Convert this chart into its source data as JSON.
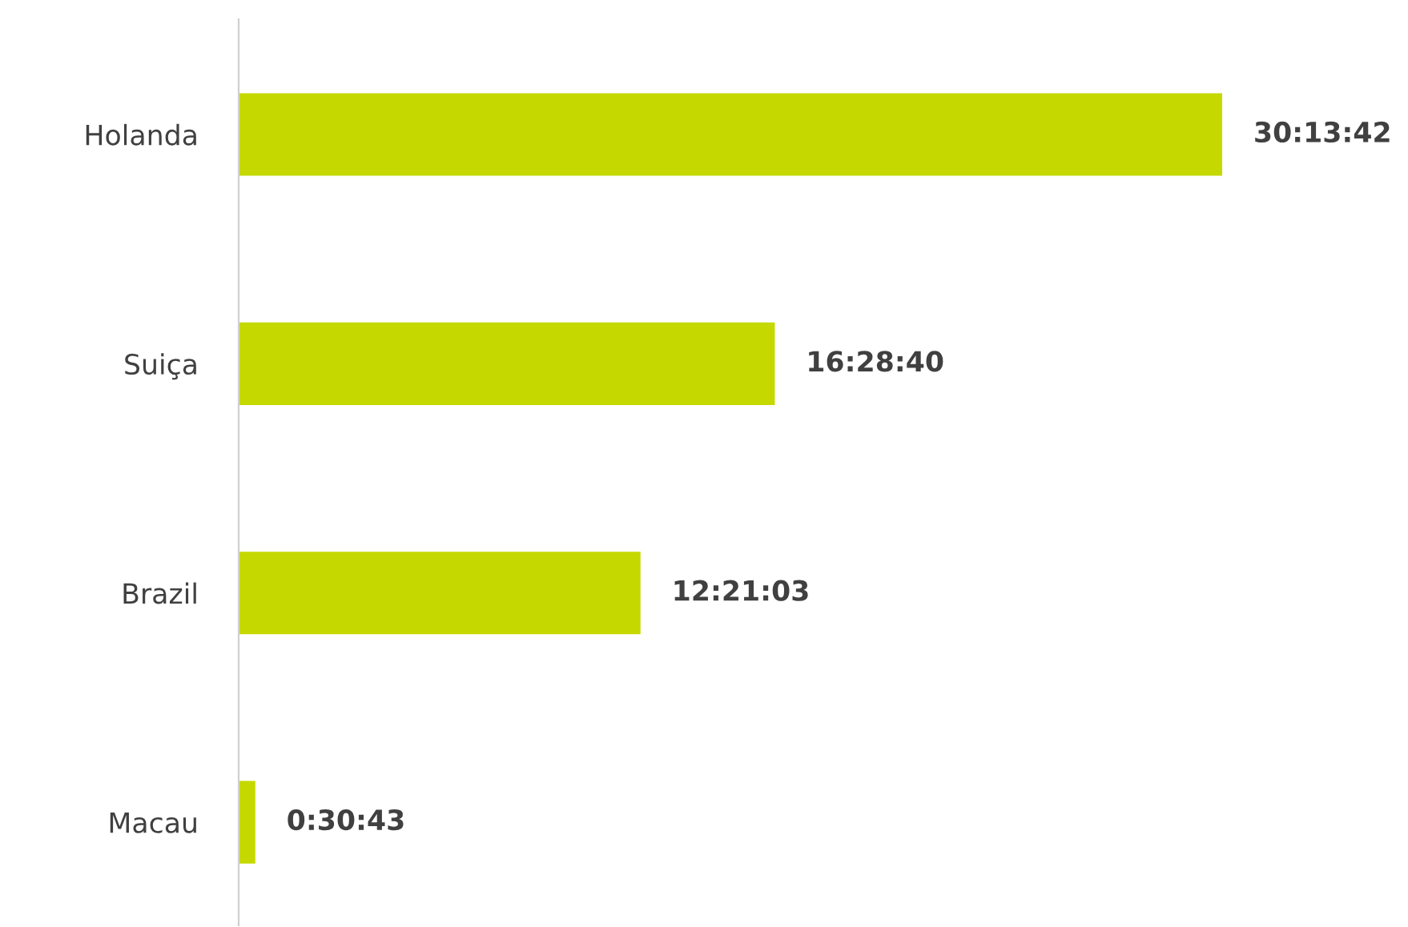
{
  "chart_data": {
    "type": "bar",
    "orientation": "horizontal",
    "categories": [
      "Holanda",
      "Suiça",
      "Brazil",
      "Macau"
    ],
    "values": [
      30.2283,
      16.4778,
      12.3508,
      0.5119
    ],
    "value_labels": [
      "30:13:42",
      "16:28:40",
      "12:21:03",
      "0:30:43"
    ],
    "color": "#c5d900",
    "grid": false,
    "legend": false
  }
}
